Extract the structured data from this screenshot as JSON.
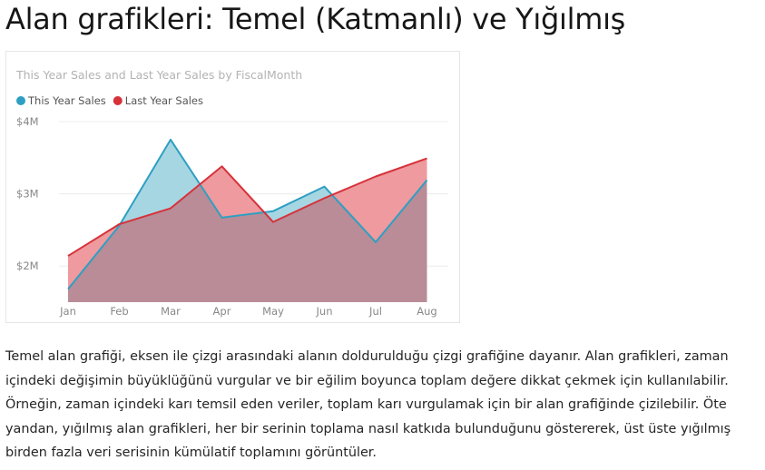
{
  "page": {
    "title": "Alan grafikleri: Temel (Katmanlı) ve Yığılmış",
    "paragraph": "Temel alan grafiği, eksen ile çizgi arasındaki alanın doldurulduğu çizgi grafiğine dayanır. Alan grafikleri, zaman içindeki değişimin büyüklüğünü vurgular ve bir eğilim boyunca toplam değere dikkat çekmek için kullanılabilir. Örneğin, zaman içindeki karı temsil eden veriler, toplam karı vurgulamak için bir alan grafiğinde çizilebilir. Öte yandan, yığılmış alan grafikleri, her bir serinin toplama nasıl katkıda bulunduğunu göstererek, üst üste yığılmış birden fazla veri serisinin kümülatif toplamını görüntüler."
  },
  "chart_data": {
    "type": "area",
    "title": "This Year Sales and Last Year Sales by FiscalMonth",
    "xlabel": "",
    "ylabel": "",
    "categories": [
      "Jan",
      "Feb",
      "Mar",
      "Apr",
      "May",
      "Jun",
      "Jul",
      "Aug"
    ],
    "ylim": [
      1.5,
      4.0
    ],
    "y_ticks": [
      2,
      3,
      4
    ],
    "y_tick_labels": [
      "$2M",
      "$3M",
      "$4M"
    ],
    "grid": true,
    "legend_position": "top-left",
    "series": [
      {
        "name": "This Year Sales",
        "color": "#2e9fc2",
        "fill": "#a7d6e3",
        "values": [
          1.68,
          2.56,
          3.75,
          2.67,
          2.76,
          3.1,
          2.33,
          3.19
        ]
      },
      {
        "name": "Last Year Sales",
        "color": "#d6323a",
        "fill": "#ee9a9e",
        "values": [
          2.14,
          2.58,
          2.8,
          3.38,
          2.61,
          2.94,
          3.24,
          3.49
        ]
      }
    ],
    "overlap_color": "#b98c97"
  }
}
